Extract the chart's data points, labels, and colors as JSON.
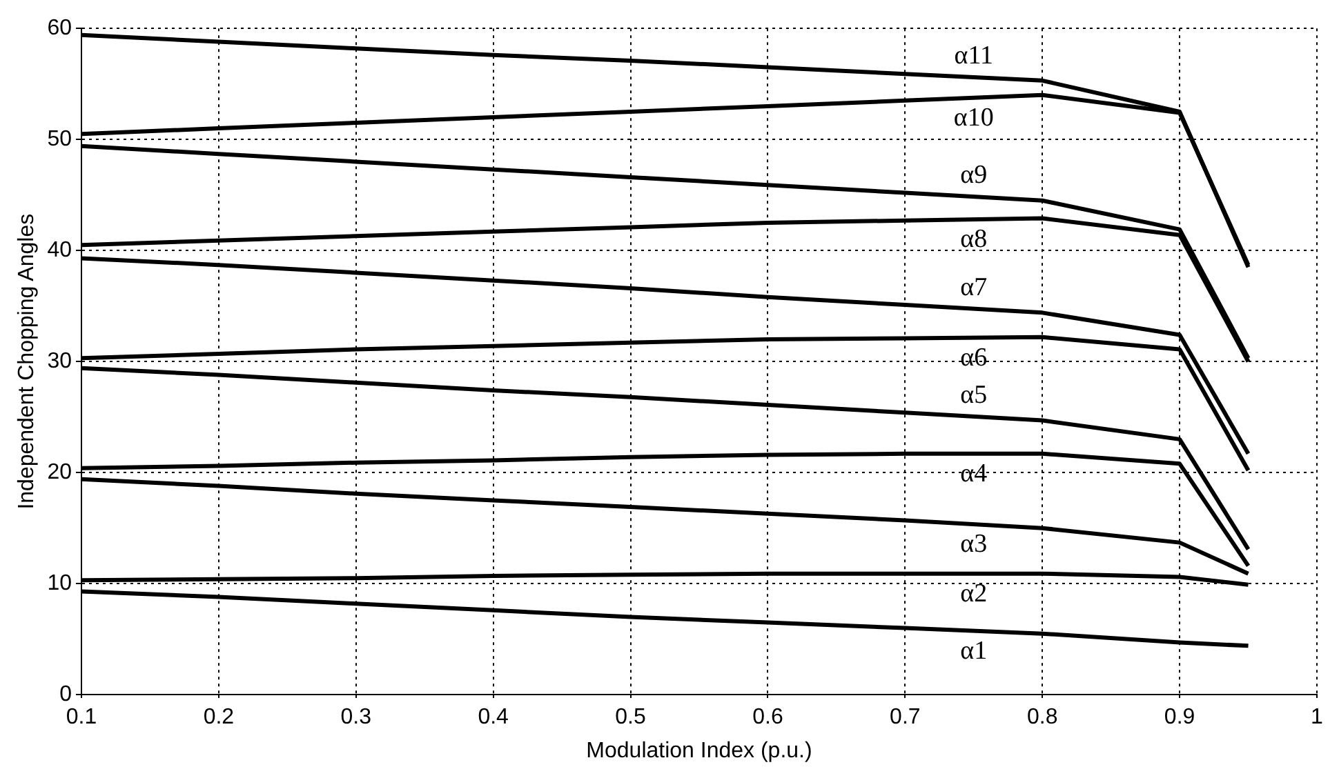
{
  "chart_data": {
    "type": "line",
    "xlabel": "Modulation Index (p.u.)",
    "ylabel": "Independent Chopping Angles",
    "x": [
      0.1,
      0.2,
      0.3,
      0.4,
      0.5,
      0.6,
      0.7,
      0.8,
      0.9,
      0.95
    ],
    "series": [
      {
        "name": "α1",
        "color": "#000000",
        "values": [
          9.3,
          8.8,
          8.2,
          7.6,
          7.0,
          6.5,
          6.0,
          5.5,
          4.7,
          4.4
        ]
      },
      {
        "name": "α2",
        "color": "#000000",
        "values": [
          10.3,
          10.4,
          10.5,
          10.7,
          10.8,
          10.9,
          10.9,
          10.9,
          10.6,
          9.9
        ]
      },
      {
        "name": "α3",
        "color": "#000000",
        "values": [
          19.4,
          18.8,
          18.1,
          17.5,
          16.9,
          16.3,
          15.7,
          15.0,
          13.7,
          10.9
        ]
      },
      {
        "name": "α4",
        "color": "#000000",
        "values": [
          20.4,
          20.6,
          20.9,
          21.1,
          21.4,
          21.6,
          21.7,
          21.7,
          20.8,
          11.6
        ]
      },
      {
        "name": "α5",
        "color": "#000000",
        "values": [
          29.4,
          28.8,
          28.1,
          27.4,
          26.8,
          26.1,
          25.4,
          24.7,
          23.0,
          13.1
        ]
      },
      {
        "name": "α6",
        "color": "#000000",
        "values": [
          30.3,
          30.7,
          31.1,
          31.4,
          31.7,
          32.0,
          32.1,
          32.2,
          31.1,
          20.2
        ]
      },
      {
        "name": "α7",
        "color": "#000000",
        "values": [
          39.3,
          38.7,
          38.0,
          37.3,
          36.6,
          35.8,
          35.1,
          34.4,
          32.4,
          21.7
        ]
      },
      {
        "name": "α8",
        "color": "#000000",
        "values": [
          40.5,
          40.9,
          41.3,
          41.7,
          42.1,
          42.5,
          42.7,
          42.9,
          41.4,
          30.0
        ]
      },
      {
        "name": "α9",
        "color": "#000000",
        "values": [
          49.4,
          48.7,
          48.0,
          47.3,
          46.6,
          45.9,
          45.2,
          44.5,
          41.9,
          30.3
        ]
      },
      {
        "name": "α10",
        "color": "#000000",
        "values": [
          50.5,
          51.0,
          51.5,
          52.0,
          52.5,
          53.0,
          53.5,
          54.0,
          52.4,
          38.7
        ]
      },
      {
        "name": "α11",
        "color": "#000000",
        "values": [
          59.4,
          58.8,
          58.2,
          57.6,
          57.1,
          56.5,
          55.9,
          55.3,
          52.5,
          38.5
        ]
      }
    ],
    "xlim": [
      0.1,
      1
    ],
    "xticks": [
      0.1,
      0.2,
      0.3,
      0.4,
      0.5,
      0.6,
      0.7,
      0.8,
      0.9,
      1
    ],
    "ylim": [
      0,
      60
    ],
    "yticks": [
      0,
      10,
      20,
      30,
      40,
      50,
      60
    ],
    "grid": true,
    "legend": false,
    "marker": "none",
    "line_style": "solid"
  }
}
